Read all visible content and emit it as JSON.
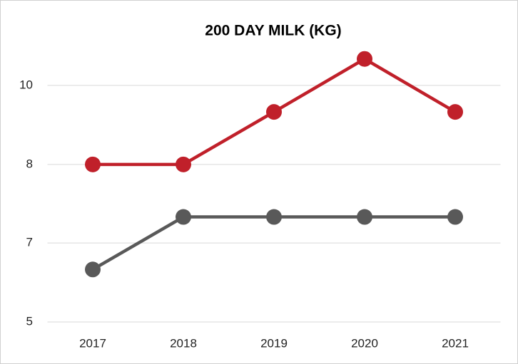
{
  "chart_data": {
    "type": "line",
    "title": "200 DAY MILK (KG)",
    "categories": [
      "2017",
      "2018",
      "2019",
      "2020",
      "2021"
    ],
    "series": [
      {
        "color": "#c0202a",
        "values": [
          8.33,
          8.33,
          9.44,
          10.56,
          9.44
        ]
      },
      {
        "color": "#595959",
        "values": [
          6.11,
          7.22,
          7.22,
          7.22,
          7.22
        ]
      }
    ],
    "ylim": [
      5,
      11.67
    ],
    "yticks": [
      5,
      {
        "value": 6.67,
        "label": "7"
      },
      {
        "value": 8.33,
        "label": "8"
      },
      10
    ],
    "grid": true
  }
}
